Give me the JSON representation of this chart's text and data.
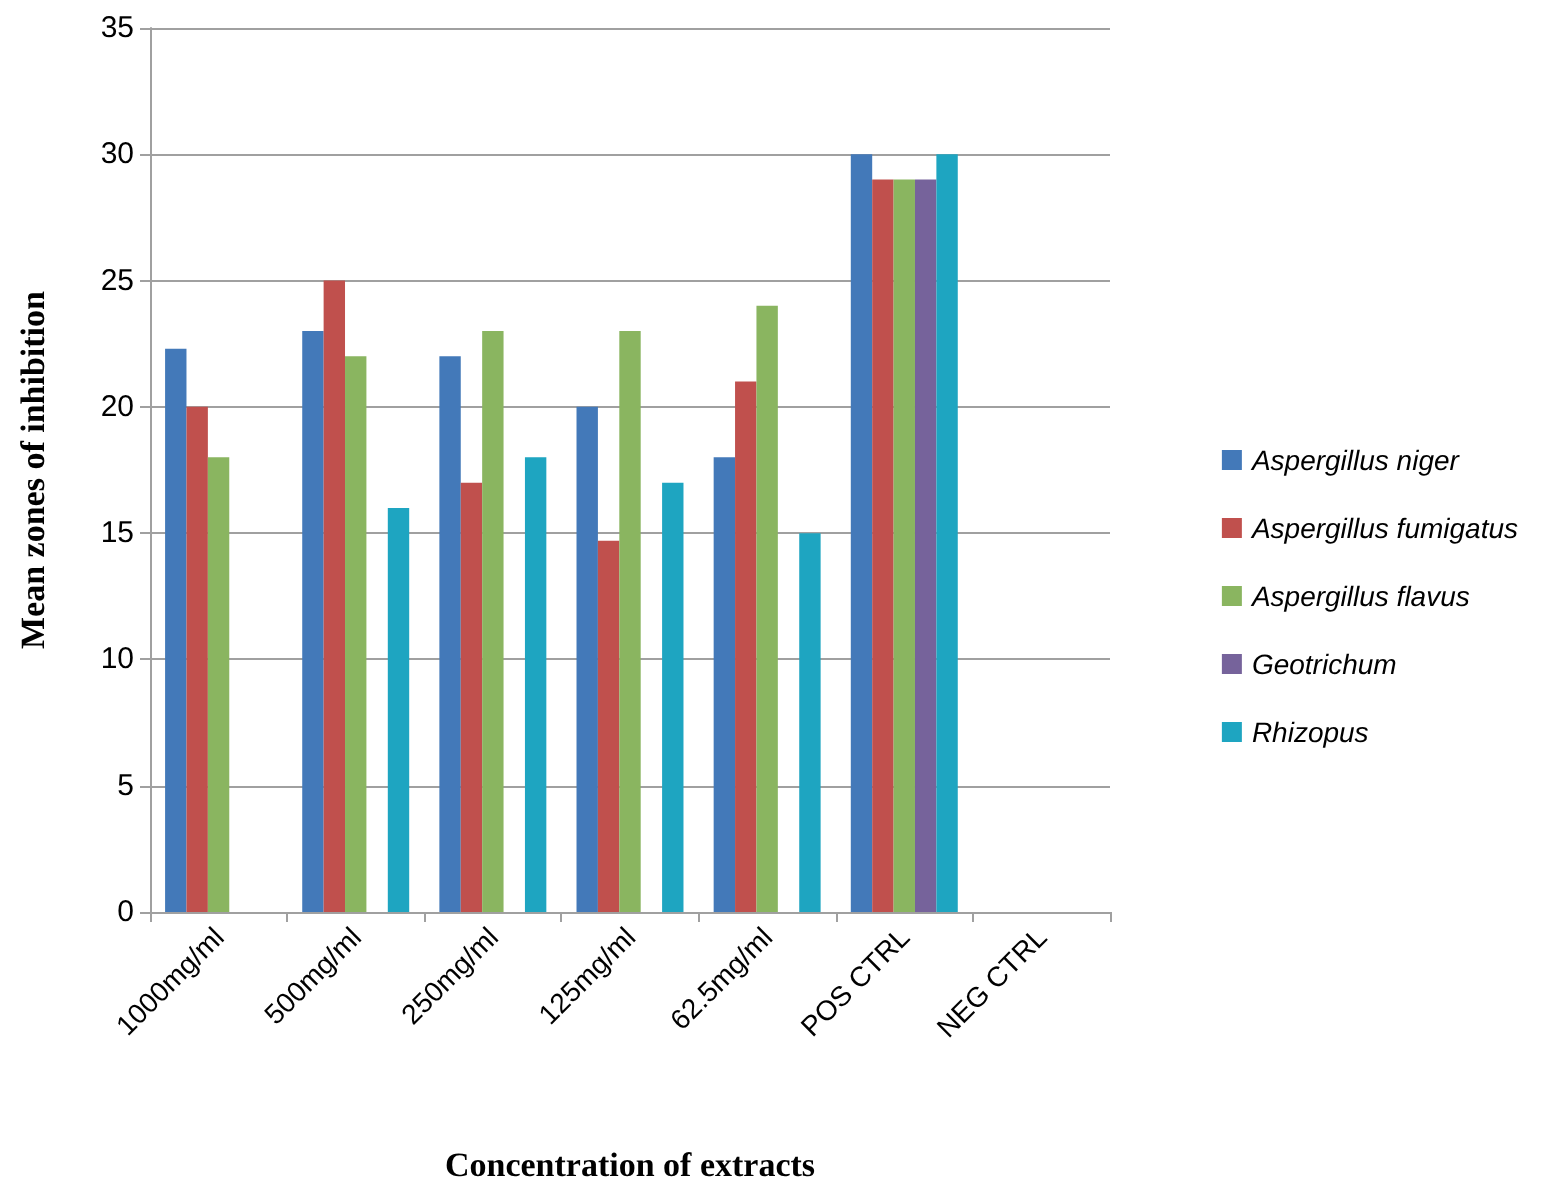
{
  "chart_data": {
    "type": "bar",
    "xlabel": "Concentration of extracts",
    "ylabel": "Mean zones of inhibition",
    "categories": [
      "1000mg/ml",
      "500mg/ml",
      "250mg/ml",
      "125mg/ml",
      "62.5mg/ml",
      "POS CTRL",
      "NEG CTRL"
    ],
    "series": [
      {
        "name": "Aspergillus niger",
        "color": "#4379b9",
        "values": [
          22.3,
          23,
          22,
          20,
          18,
          30,
          0
        ]
      },
      {
        "name": "Aspergillus fumigatus",
        "color": "#c0504d",
        "values": [
          20,
          25,
          17,
          14.7,
          21,
          29,
          0
        ]
      },
      {
        "name": "Aspergillus flavus",
        "color": "#8ab560",
        "values": [
          18,
          22,
          23,
          23,
          24,
          29,
          0
        ]
      },
      {
        "name": "Geotrichum",
        "color": "#76639b",
        "values": [
          0,
          0,
          0,
          0,
          0,
          29,
          0
        ]
      },
      {
        "name": "Rhizopus",
        "color": "#1ea5c1",
        "values": [
          0,
          16,
          18,
          17,
          15,
          30,
          0
        ]
      }
    ],
    "ylim": [
      0,
      35
    ],
    "yticks": [
      0,
      5,
      10,
      15,
      20,
      25,
      30,
      35
    ],
    "grid": "y",
    "legend": "right"
  }
}
